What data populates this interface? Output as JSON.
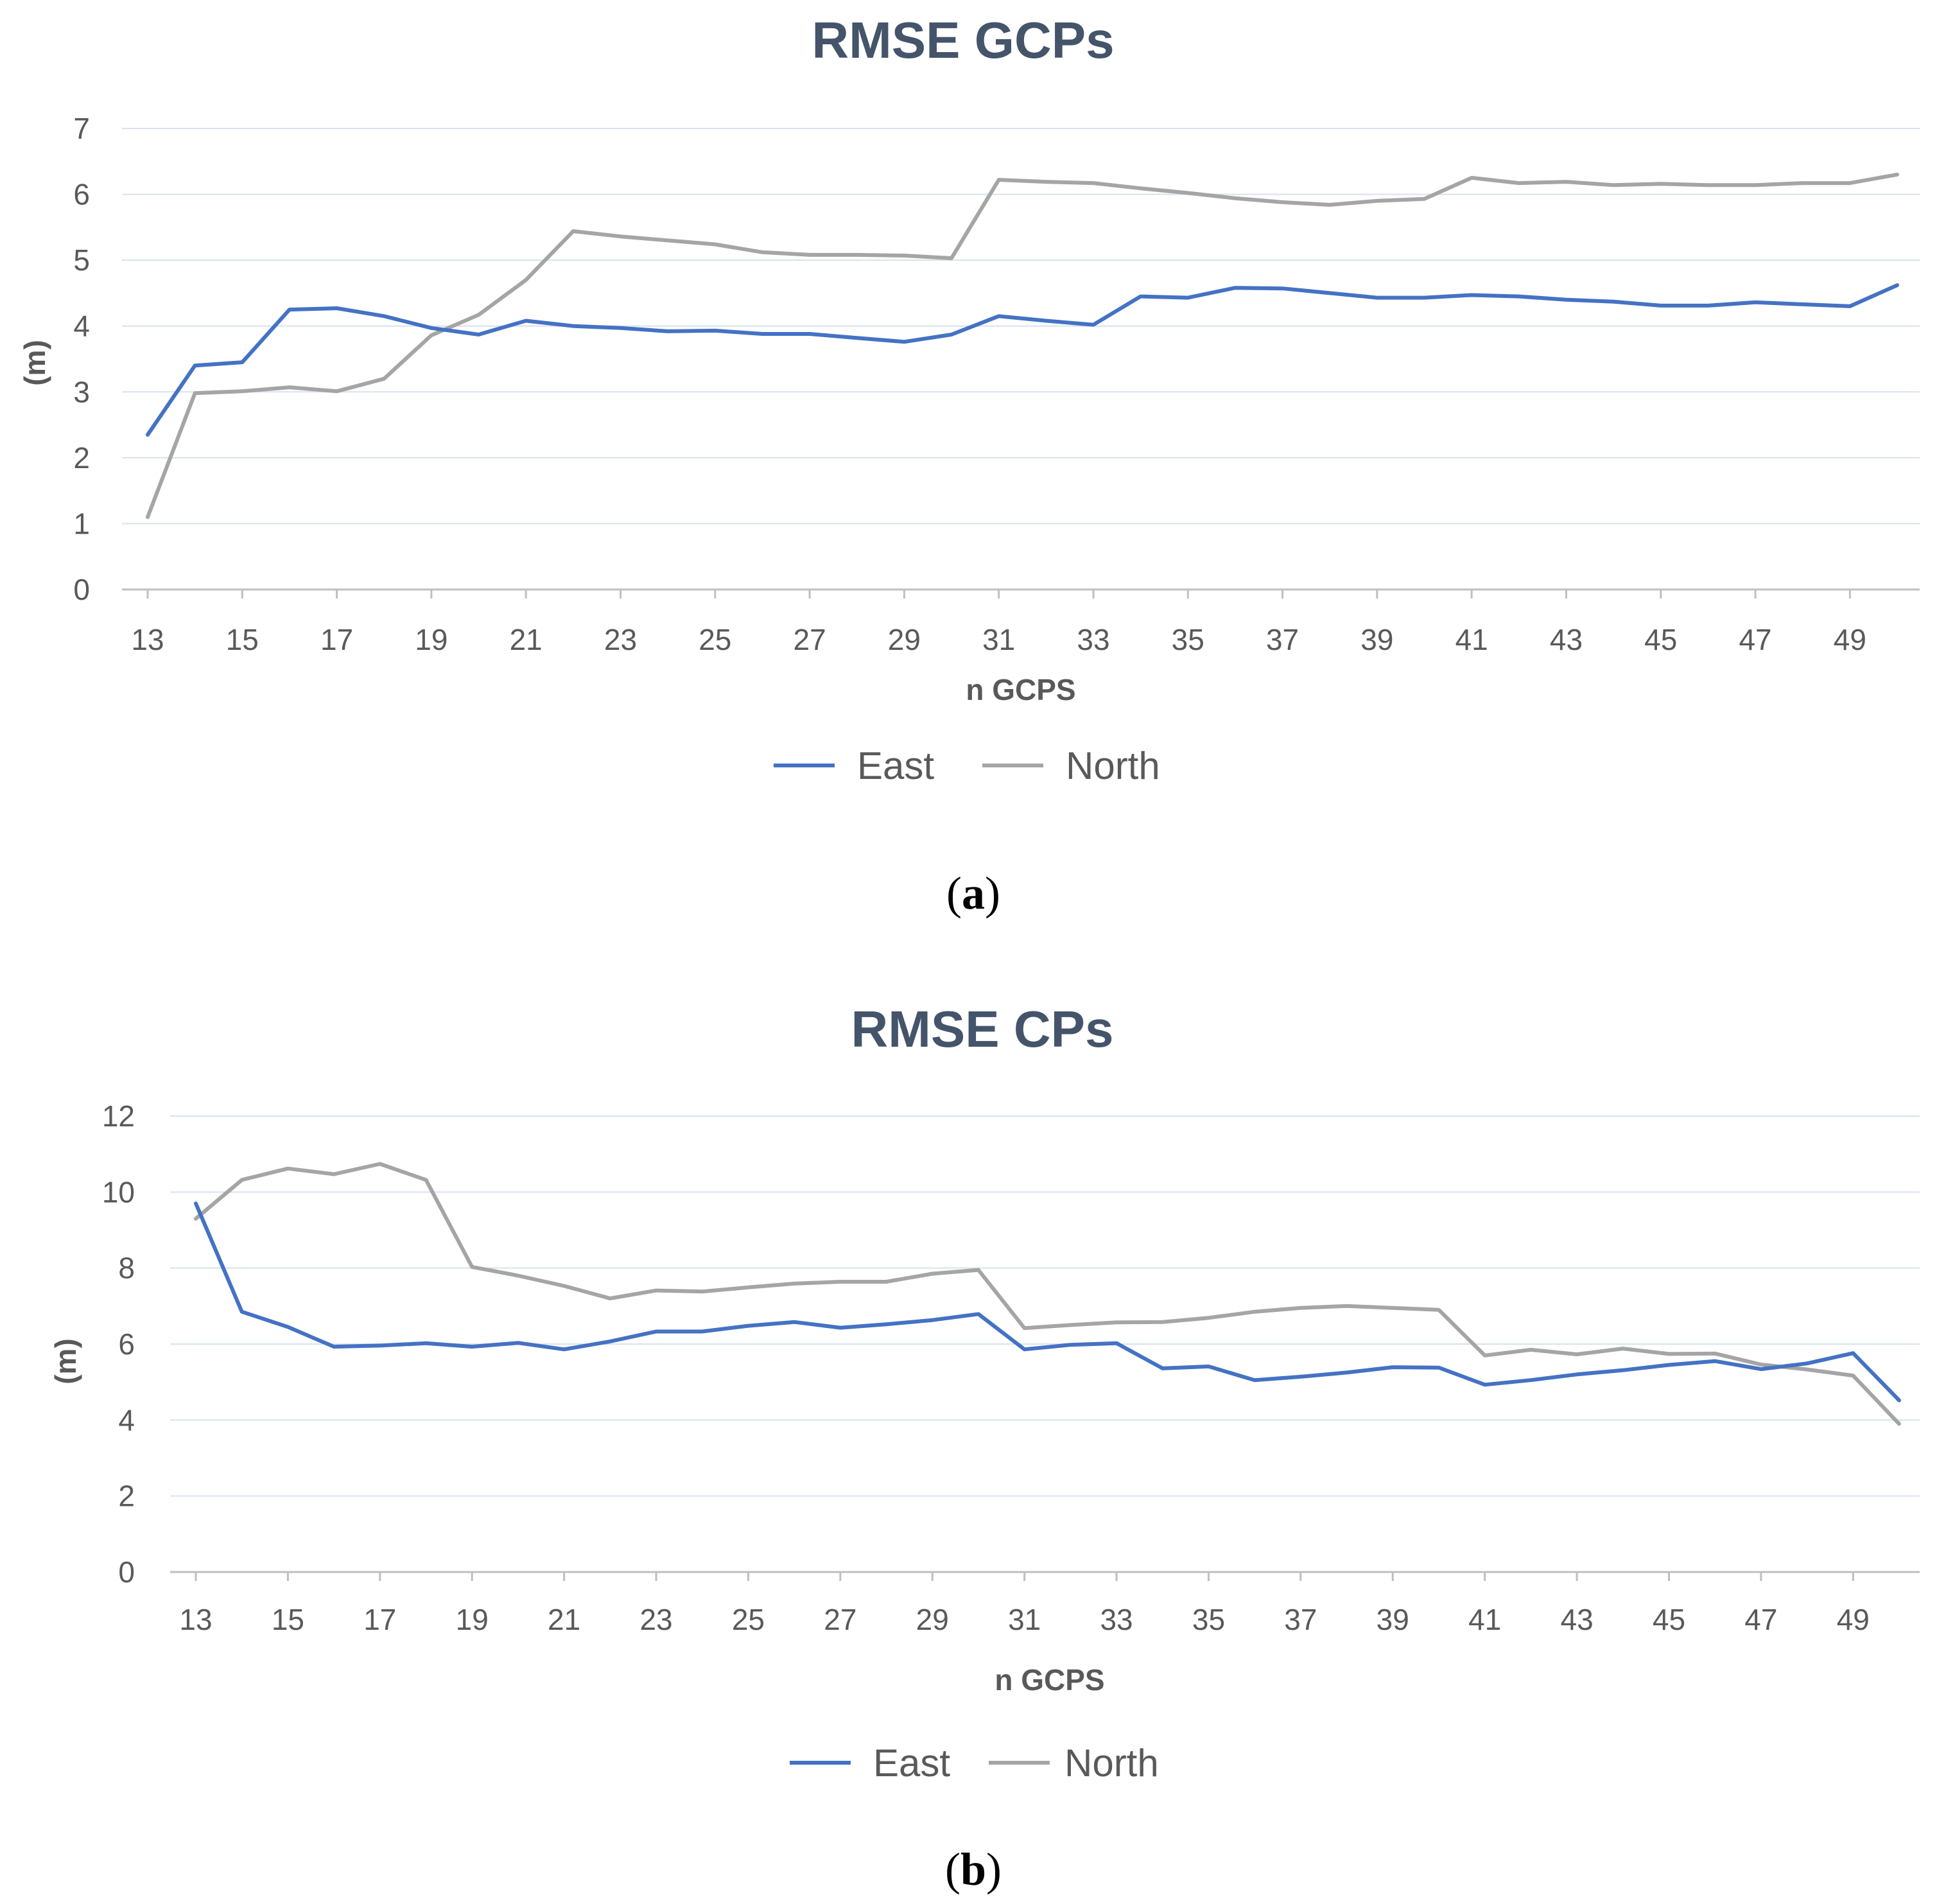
{
  "chart_data": [
    {
      "type": "line",
      "title": "RMSE GCPs",
      "xlabel": "n GCPS",
      "ylabel": "(m)",
      "ylim": [
        0,
        7
      ],
      "yticks": [
        0,
        1,
        2,
        3,
        4,
        5,
        6,
        7
      ],
      "x": [
        13,
        14,
        15,
        16,
        17,
        18,
        19,
        20,
        21,
        22,
        23,
        24,
        25,
        26,
        27,
        28,
        29,
        30,
        31,
        32,
        33,
        34,
        35,
        36,
        37,
        38,
        39,
        40,
        41,
        42,
        43,
        44,
        45,
        46,
        47,
        48,
        49,
        50
      ],
      "xtick_labels": [
        "13",
        "15",
        "17",
        "19",
        "21",
        "23",
        "25",
        "27",
        "29",
        "31",
        "33",
        "35",
        "37",
        "39",
        "41",
        "43",
        "45",
        "47",
        "49"
      ],
      "series": [
        {
          "name": "East",
          "color": "#4472c4",
          "values": [
            2.35,
            3.4,
            3.45,
            4.25,
            4.27,
            4.15,
            3.97,
            3.87,
            4.08,
            4.0,
            3.97,
            3.92,
            3.93,
            3.88,
            3.88,
            3.82,
            3.76,
            3.87,
            4.15,
            4.08,
            4.02,
            4.45,
            4.43,
            4.58,
            4.57,
            4.5,
            4.43,
            4.43,
            4.47,
            4.45,
            4.4,
            4.37,
            4.31,
            4.31,
            4.36,
            4.33,
            4.3,
            4.62
          ]
        },
        {
          "name": "North",
          "color": "#a5a5a5",
          "values": [
            1.1,
            2.98,
            3.01,
            3.07,
            3.01,
            3.2,
            3.86,
            4.17,
            4.7,
            5.44,
            5.36,
            5.3,
            5.24,
            5.12,
            5.08,
            5.08,
            5.07,
            5.03,
            6.22,
            6.19,
            6.17,
            6.09,
            6.02,
            5.94,
            5.88,
            5.84,
            5.9,
            5.93,
            6.25,
            6.17,
            6.19,
            6.14,
            6.16,
            6.14,
            6.14,
            6.17,
            6.17,
            6.3
          ]
        }
      ],
      "legend": "bottom-center",
      "caption": {
        "open": "(",
        "letter": "a",
        "close": ")"
      }
    },
    {
      "type": "line",
      "title": "RMSE CPs",
      "xlabel": "n GCPS",
      "ylabel": "(m)",
      "ylim": [
        0,
        12
      ],
      "yticks": [
        0,
        2,
        4,
        6,
        8,
        10,
        12
      ],
      "x": [
        13,
        14,
        15,
        16,
        17,
        18,
        19,
        20,
        21,
        22,
        23,
        24,
        25,
        26,
        27,
        28,
        29,
        30,
        31,
        32,
        33,
        34,
        35,
        36,
        37,
        38,
        39,
        40,
        41,
        42,
        43,
        44,
        45,
        46,
        47,
        48,
        49,
        50
      ],
      "xtick_labels": [
        "13",
        "15",
        "17",
        "19",
        "21",
        "23",
        "25",
        "27",
        "29",
        "31",
        "33",
        "35",
        "37",
        "39",
        "41",
        "43",
        "45",
        "47",
        "49"
      ],
      "series": [
        {
          "name": "East",
          "color": "#4472c4",
          "values": [
            9.7,
            6.85,
            6.45,
            5.93,
            5.96,
            6.02,
            5.93,
            6.03,
            5.86,
            6.07,
            6.33,
            6.33,
            6.48,
            6.58,
            6.43,
            6.52,
            6.63,
            6.79,
            5.86,
            5.98,
            6.02,
            5.36,
            5.41,
            5.05,
            5.14,
            5.25,
            5.39,
            5.38,
            4.93,
            5.05,
            5.2,
            5.31,
            5.45,
            5.55,
            5.34,
            5.49,
            5.76,
            4.52
          ]
        },
        {
          "name": "North",
          "color": "#a5a5a5",
          "values": [
            9.3,
            10.32,
            10.62,
            10.47,
            10.74,
            10.32,
            8.03,
            7.8,
            7.53,
            7.2,
            7.41,
            7.38,
            7.49,
            7.59,
            7.64,
            7.64,
            7.85,
            7.95,
            6.42,
            6.5,
            6.57,
            6.58,
            6.69,
            6.85,
            6.95,
            7.0,
            6.95,
            6.9,
            5.7,
            5.85,
            5.73,
            5.88,
            5.74,
            5.75,
            5.46,
            5.33,
            5.17,
            3.9
          ]
        }
      ],
      "legend": "bottom-center",
      "caption": {
        "open": "(",
        "letter": "b",
        "close": ")"
      }
    }
  ]
}
